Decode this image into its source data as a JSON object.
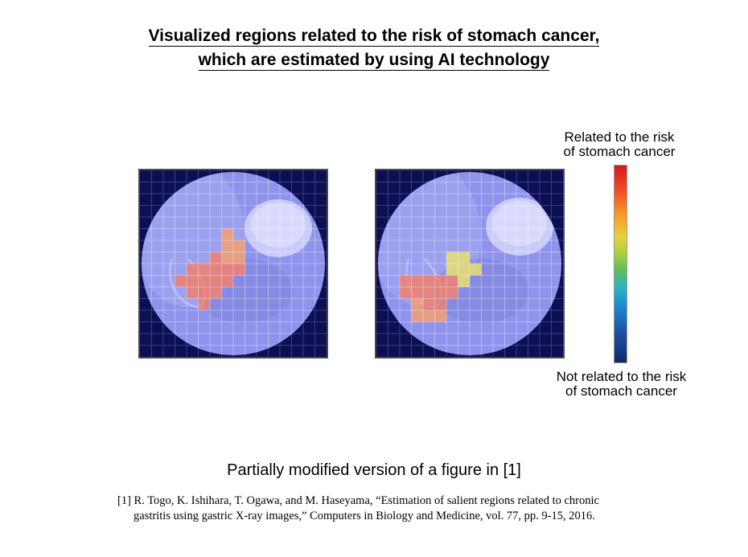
{
  "title": {
    "line1": "Visualized regions related to the risk of stomach cancer,",
    "line2": "which are estimated by using AI technology"
  },
  "legend": {
    "top_label_line1": "Related to the risk",
    "top_label_line2": "of stomach cancer",
    "bottom_label_line1": "Not related to the risk",
    "bottom_label_line2": "of stomach cancer",
    "colors": [
      "#d7191c",
      "#f79a2a",
      "#e8d23b",
      "#a9cf3e",
      "#2fb3c1",
      "#1a88cf",
      "#12286e"
    ]
  },
  "caption": "Partially modified version of a figure in [1]",
  "reference": {
    "line1": "[1] R. Togo, K. Ishihara, T. Ogawa, and M. Haseyama, “Estimation of salient regions related to chronic",
    "line2": "gastritis using gastric X-ray images,” Computers in Biology and Medicine, vol. 77, pp. 9-15, 2016."
  },
  "panels": [
    {
      "name": "xray-left",
      "heat_cells": [
        {
          "col": 7,
          "row": 5,
          "color": "#f5a070"
        },
        {
          "col": 7,
          "row": 6,
          "color": "#f5a070"
        },
        {
          "col": 8,
          "row": 6,
          "color": "#f5a070"
        },
        {
          "col": 6,
          "row": 7,
          "color": "#f08070"
        },
        {
          "col": 7,
          "row": 7,
          "color": "#f5a070"
        },
        {
          "col": 8,
          "row": 7,
          "color": "#f5a070"
        },
        {
          "col": 4,
          "row": 8,
          "color": "#f08070"
        },
        {
          "col": 5,
          "row": 8,
          "color": "#f08070"
        },
        {
          "col": 6,
          "row": 8,
          "color": "#f08070"
        },
        {
          "col": 7,
          "row": 8,
          "color": "#f08070"
        },
        {
          "col": 8,
          "row": 8,
          "color": "#f08070"
        },
        {
          "col": 3,
          "row": 9,
          "color": "#f08070"
        },
        {
          "col": 4,
          "row": 9,
          "color": "#f08070"
        },
        {
          "col": 5,
          "row": 9,
          "color": "#f08070"
        },
        {
          "col": 6,
          "row": 9,
          "color": "#f08070"
        },
        {
          "col": 7,
          "row": 9,
          "color": "#f08070"
        },
        {
          "col": 4,
          "row": 10,
          "color": "#f08070"
        },
        {
          "col": 5,
          "row": 10,
          "color": "#f08070"
        },
        {
          "col": 6,
          "row": 10,
          "color": "#f08070"
        },
        {
          "col": 5,
          "row": 11,
          "color": "#f08070"
        }
      ]
    },
    {
      "name": "xray-right",
      "heat_cells": [
        {
          "col": 6,
          "row": 7,
          "color": "#e8e070"
        },
        {
          "col": 7,
          "row": 7,
          "color": "#e8e070"
        },
        {
          "col": 6,
          "row": 8,
          "color": "#e8e070"
        },
        {
          "col": 7,
          "row": 8,
          "color": "#e8e070"
        },
        {
          "col": 8,
          "row": 8,
          "color": "#e8e070"
        },
        {
          "col": 2,
          "row": 9,
          "color": "#f08070"
        },
        {
          "col": 3,
          "row": 9,
          "color": "#f08070"
        },
        {
          "col": 4,
          "row": 9,
          "color": "#f08070"
        },
        {
          "col": 5,
          "row": 9,
          "color": "#f08070"
        },
        {
          "col": 6,
          "row": 9,
          "color": "#f08070"
        },
        {
          "col": 7,
          "row": 9,
          "color": "#e8e070"
        },
        {
          "col": 2,
          "row": 10,
          "color": "#f08070"
        },
        {
          "col": 3,
          "row": 10,
          "color": "#f08070"
        },
        {
          "col": 4,
          "row": 10,
          "color": "#f08070"
        },
        {
          "col": 5,
          "row": 10,
          "color": "#f08070"
        },
        {
          "col": 6,
          "row": 10,
          "color": "#f08070"
        },
        {
          "col": 3,
          "row": 11,
          "color": "#f5a070"
        },
        {
          "col": 4,
          "row": 11,
          "color": "#f08070"
        },
        {
          "col": 5,
          "row": 11,
          "color": "#f08070"
        },
        {
          "col": 3,
          "row": 12,
          "color": "#f5a070"
        },
        {
          "col": 4,
          "row": 12,
          "color": "#f5a070"
        },
        {
          "col": 5,
          "row": 12,
          "color": "#f5a070"
        }
      ]
    }
  ]
}
